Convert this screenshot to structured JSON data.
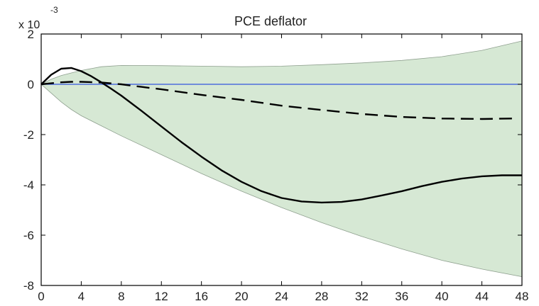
{
  "chart_data": {
    "type": "line",
    "title": "PCE deflator",
    "xlabel": "",
    "ylabel": "",
    "y_scale_label": {
      "base": "x 10",
      "exponent": "-3"
    },
    "xlim": [
      0,
      48
    ],
    "ylim": [
      -8,
      2
    ],
    "xticks": [
      0,
      4,
      8,
      12,
      16,
      20,
      24,
      28,
      32,
      36,
      40,
      44,
      48
    ],
    "yticks": [
      -8,
      -6,
      -4,
      -2,
      0,
      2
    ],
    "grid": false,
    "colors": {
      "band_fill": "#d6e8d4",
      "band_edge": "#8fa08f",
      "zero_line": "#3355dd",
      "solid_line": "#000000",
      "dashed_line": "#000000",
      "axes": "#000000"
    },
    "band": {
      "x": [
        0,
        1,
        2,
        3,
        4,
        6,
        8,
        12,
        16,
        20,
        24,
        28,
        32,
        36,
        40,
        44,
        48
      ],
      "upper": [
        0,
        0.2,
        0.35,
        0.45,
        0.55,
        0.7,
        0.75,
        0.74,
        0.72,
        0.7,
        0.72,
        0.78,
        0.85,
        0.95,
        1.1,
        1.35,
        1.72
      ],
      "lower": [
        0,
        -0.35,
        -0.7,
        -1.0,
        -1.25,
        -1.65,
        -2.05,
        -2.8,
        -3.55,
        -4.25,
        -4.9,
        -5.5,
        -6.05,
        -6.55,
        -7.0,
        -7.35,
        -7.65
      ]
    },
    "series": [
      {
        "style": "solid",
        "x": [
          0,
          1,
          2,
          3,
          4,
          5,
          6,
          7,
          8,
          10,
          12,
          14,
          16,
          18,
          20,
          22,
          24,
          26,
          28,
          30,
          32,
          34,
          36,
          38,
          40,
          42,
          44,
          46,
          48
        ],
        "values": [
          0,
          0.38,
          0.62,
          0.65,
          0.52,
          0.32,
          0.08,
          -0.18,
          -0.45,
          -1.05,
          -1.68,
          -2.3,
          -2.88,
          -3.42,
          -3.88,
          -4.25,
          -4.52,
          -4.66,
          -4.7,
          -4.68,
          -4.58,
          -4.42,
          -4.25,
          -4.05,
          -3.88,
          -3.75,
          -3.66,
          -3.62,
          -3.62
        ]
      },
      {
        "style": "dashed",
        "x": [
          0,
          1,
          2,
          3,
          4,
          6,
          8,
          10,
          12,
          16,
          20,
          24,
          28,
          32,
          36,
          40,
          44,
          47
        ],
        "values": [
          0,
          0.04,
          0.08,
          0.1,
          0.1,
          0.07,
          0.0,
          -0.1,
          -0.2,
          -0.42,
          -0.62,
          -0.85,
          -1.02,
          -1.18,
          -1.3,
          -1.36,
          -1.38,
          -1.36
        ]
      },
      {
        "style": "zero",
        "x": [
          0,
          48
        ],
        "values": [
          0,
          0
        ]
      }
    ]
  }
}
